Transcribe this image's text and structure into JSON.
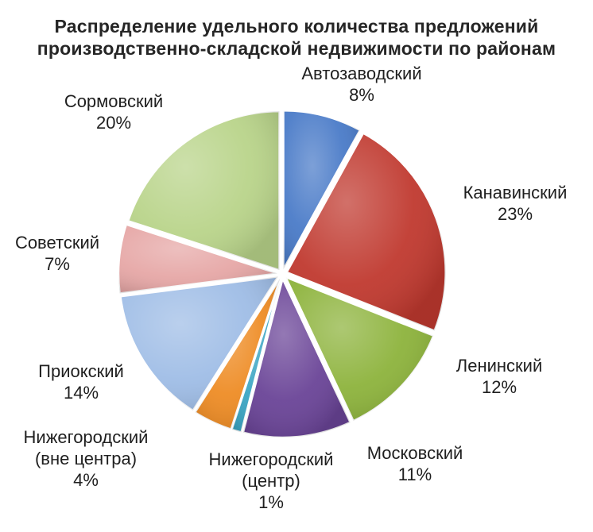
{
  "chart_data": {
    "type": "pie",
    "title_lines": [
      "Распределение  удельного  количества  предложений",
      "производственно-складской  недвижимости  по районам"
    ],
    "slices": [
      {
        "name": "Автозаводский",
        "value": 8,
        "label": "8%",
        "color": "#4a7bc8"
      },
      {
        "name": "Канавинский",
        "value": 23,
        "label": "23%",
        "color": "#c0392f"
      },
      {
        "name": "Ленинский",
        "value": 12,
        "label": "12%",
        "color": "#8db33c"
      },
      {
        "name": "Московский",
        "value": 11,
        "label": "11%",
        "color": "#6a4497"
      },
      {
        "name": "Нижегородский (центр)",
        "label_lines": [
          "Нижегородский",
          "(центр)"
        ],
        "value": 1,
        "label": "1%",
        "color": "#3aa5c3"
      },
      {
        "name": "Нижегородский (вне центра)",
        "label_lines": [
          "Нижегородский",
          "(вне центра)"
        ],
        "value": 4,
        "label": "4%",
        "color": "#ee8c25"
      },
      {
        "name": "Приокский",
        "value": 14,
        "label": "14%",
        "color": "#9fbde6"
      },
      {
        "name": "Советский",
        "value": 7,
        "label": "7%",
        "color": "#e6a7a6"
      },
      {
        "name": "Сормовский",
        "value": 20,
        "label": "20%",
        "color": "#b9d48a"
      }
    ],
    "legend": "none"
  }
}
